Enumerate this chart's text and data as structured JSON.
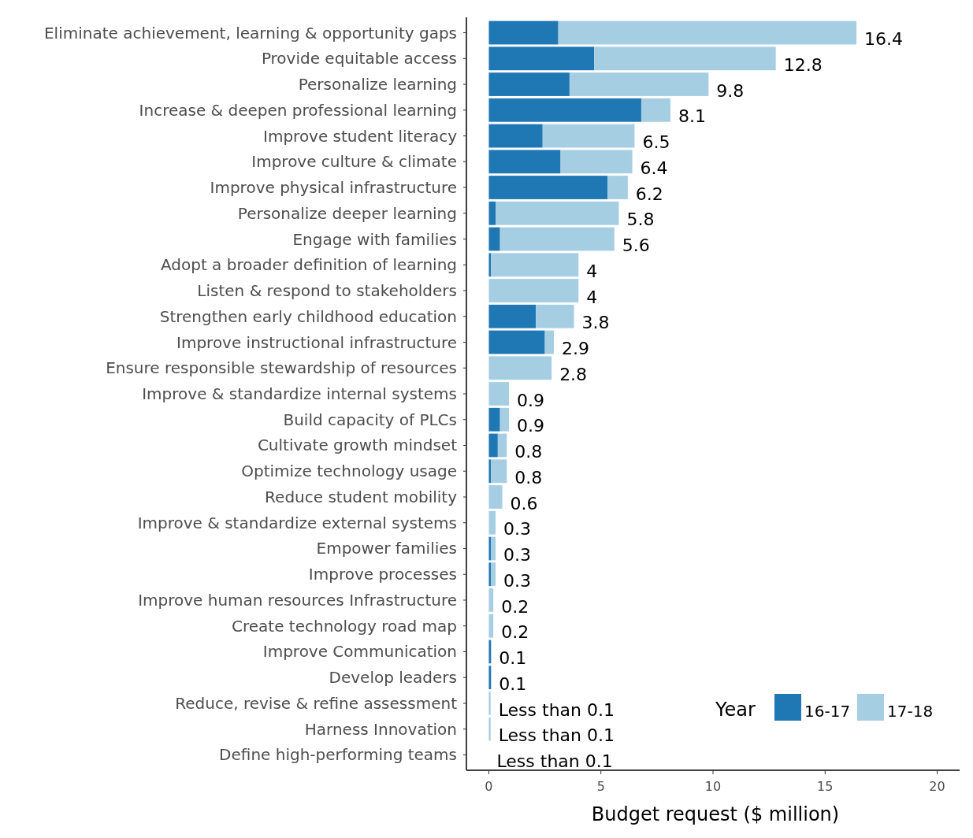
{
  "chart_data": {
    "type": "bar",
    "orientation": "horizontal",
    "stacked": true,
    "categories": [
      "Eliminate achievement, learning & opportunity gaps",
      "Provide equitable access",
      "Personalize learning",
      "Increase & deepen professional learning",
      "Improve student literacy",
      "Improve culture & climate",
      "Improve physical infrastructure",
      "Personalize deeper learning",
      "Engage with families",
      "Adopt a broader definition of learning",
      "Listen & respond to stakeholders",
      "Strengthen early childhood education",
      "Improve instructional infrastructure",
      "Ensure responsible stewardship of resources",
      "Improve & standardize internal systems",
      "Build capacity of PLCs",
      "Cultivate growth mindset",
      "Optimize technology usage",
      "Reduce student mobility",
      "Improve & standardize external systems",
      "Empower families",
      "Improve processes",
      "Improve human resources Infrastructure",
      "Create technology road map",
      "Improve Communication",
      "Develop leaders",
      "Reduce, revise & refine assessment",
      "Harness Innovation",
      "Define high-performing teams"
    ],
    "series": [
      {
        "name": "16-17",
        "color": "#1f78b4",
        "values": [
          3.1,
          4.7,
          3.6,
          6.8,
          2.4,
          3.2,
          5.3,
          0.3,
          0.5,
          0.1,
          0,
          2.1,
          2.5,
          0,
          0,
          0.5,
          0.4,
          0.1,
          0,
          0,
          0.1,
          0.1,
          0,
          0,
          0.1,
          0.1,
          0,
          0,
          0
        ]
      },
      {
        "name": "17-18",
        "color": "#a6cee3",
        "values": [
          13.3,
          8.1,
          6.2,
          1.3,
          4.1,
          3.2,
          0.9,
          5.5,
          5.1,
          3.9,
          4,
          1.7,
          0.4,
          2.8,
          0.9,
          0.4,
          0.4,
          0.7,
          0.6,
          0.3,
          0.2,
          0.2,
          0.2,
          0.2,
          0,
          0,
          0.08,
          0.08,
          0
        ]
      }
    ],
    "totals": [
      "16.4",
      "12.8",
      "9.8",
      "8.1",
      "6.5",
      "6.4",
      "6.2",
      "5.8",
      "5.6",
      "4",
      "4",
      "3.8",
      "2.9",
      "2.8",
      "0.9",
      "0.9",
      "0.8",
      "0.8",
      "0.6",
      "0.3",
      "0.3",
      "0.3",
      "0.2",
      "0.2",
      "0.1",
      "0.1",
      "Less than 0.1",
      "Less than 0.1",
      "Less than 0.1"
    ],
    "xlim": [
      -1,
      21
    ],
    "xticks": [
      0,
      5,
      10,
      15,
      20
    ],
    "xlabel": "Budget request ($ million)",
    "legend": "bottom right",
    "legend_title": "Year",
    "grid": false
  }
}
